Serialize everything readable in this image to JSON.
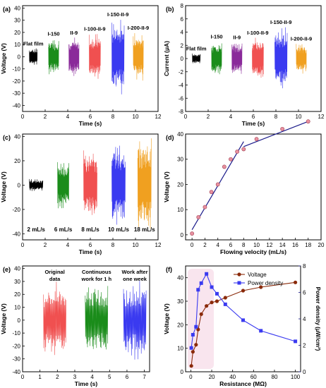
{
  "colors": {
    "black": "#000000",
    "green": "#1a8c1a",
    "purple": "#8a2a9a",
    "red": "#f05050",
    "blue": "#3a3af0",
    "orange": "#f0a020",
    "brown": "#8a2a0a",
    "navy": "#1a1a8a",
    "highlight": "#f4d0e0",
    "pointpink": "#e890a0"
  },
  "chart_data": [
    {
      "panel": "(a)",
      "type": "line",
      "xlabel": "Time (s)",
      "ylabel": "Voltage (V)",
      "xlim": [
        0,
        12
      ],
      "ylim": [
        -45,
        42
      ],
      "xticks": [
        "0",
        "2",
        "4",
        "6",
        "8",
        "10",
        "12"
      ],
      "yticks": [
        "-40",
        "-30",
        "-20",
        "-10",
        "0",
        "10",
        "20",
        "30",
        "40"
      ],
      "series": [
        {
          "name": "Flat film",
          "t0": 0.6,
          "t1": 1.3,
          "amp": 7,
          "color_key": "black"
        },
        {
          "name": "I-150",
          "t0": 2.3,
          "t1": 3.2,
          "amp": 15,
          "color_key": "green"
        },
        {
          "name": "II-9",
          "t0": 4.1,
          "t1": 5.0,
          "amp": 16,
          "color_key": "purple"
        },
        {
          "name": "I-100-II-9",
          "t0": 5.9,
          "t1": 6.9,
          "amp": 19,
          "color_key": "red"
        },
        {
          "name": "I-150-II-9",
          "t0": 7.9,
          "t1": 9.0,
          "amp": 31,
          "color_key": "blue"
        },
        {
          "name": "I-200-II-9",
          "t0": 9.8,
          "t1": 10.7,
          "amp": 20,
          "color_key": "orange"
        }
      ]
    },
    {
      "panel": "(b)",
      "type": "line",
      "xlabel": "Time (s)",
      "ylabel": "Current (μA)",
      "xlim": [
        0,
        12
      ],
      "ylim": [
        -8,
        8
      ],
      "xticks": [
        "0",
        "2",
        "4",
        "6",
        "8",
        "10",
        "12"
      ],
      "yticks": [
        "-8",
        "-6",
        "-4",
        "-2",
        "0",
        "2",
        "4",
        "6",
        "8"
      ],
      "series": [
        {
          "name": "Flat film",
          "t0": 0.6,
          "t1": 1.3,
          "amp": 0.8,
          "color_key": "black"
        },
        {
          "name": "I-150",
          "t0": 2.3,
          "t1": 3.2,
          "amp": 2.6,
          "color_key": "green"
        },
        {
          "name": "II-9",
          "t0": 4.1,
          "t1": 5.0,
          "amp": 2.5,
          "color_key": "purple"
        },
        {
          "name": "I-100-II-9",
          "t0": 5.9,
          "t1": 6.9,
          "amp": 3.2,
          "color_key": "red"
        },
        {
          "name": "I-150-II-9",
          "t0": 7.9,
          "t1": 9.0,
          "amp": 4.8,
          "color_key": "blue"
        },
        {
          "name": "I-200-II-9",
          "t0": 9.8,
          "t1": 10.7,
          "amp": 2.3,
          "color_key": "orange"
        }
      ]
    },
    {
      "panel": "(c)",
      "type": "line",
      "xlabel": "Time (s)",
      "ylabel": "Voltage (V)",
      "xlim": [
        0,
        12
      ],
      "ylim": [
        -45,
        42
      ],
      "xticks": [
        "0",
        "2",
        "4",
        "6",
        "8",
        "10",
        "12"
      ],
      "yticks": [
        "-40",
        "-20",
        "0",
        "20",
        "40"
      ],
      "series": [
        {
          "name": "2 mL/s",
          "t0": 0.6,
          "t1": 1.8,
          "amp": 5,
          "color_key": "black"
        },
        {
          "name": "6 mL/s",
          "t0": 3.1,
          "t1": 4.1,
          "amp": 20,
          "color_key": "green"
        },
        {
          "name": "8 mL/s",
          "t0": 5.4,
          "t1": 6.6,
          "amp": 29,
          "color_key": "red"
        },
        {
          "name": "10 mL/s",
          "t0": 7.9,
          "t1": 9.1,
          "amp": 35,
          "color_key": "blue"
        },
        {
          "name": "18 mL/s",
          "t0": 10.2,
          "t1": 11.4,
          "amp": 40,
          "color_key": "orange"
        }
      ]
    },
    {
      "panel": "(d)",
      "type": "scatter",
      "xlabel": "Flowing velocity (mL/s)",
      "ylabel": "Voltage (V)",
      "xlim": [
        -1,
        20
      ],
      "ylim": [
        -2,
        40
      ],
      "xticks": [
        "0",
        "2",
        "4",
        "6",
        "8",
        "10",
        "12",
        "14",
        "16",
        "18",
        "20"
      ],
      "yticks": [
        "0",
        "10",
        "20",
        "30",
        "40"
      ],
      "x": [
        0,
        1,
        2,
        3,
        4,
        5,
        6,
        7,
        8,
        10,
        14,
        18
      ],
      "y": [
        0.5,
        7,
        11,
        17,
        20,
        27,
        30,
        33,
        34,
        38,
        42,
        45
      ],
      "fit_lines": [
        {
          "x": [
            0,
            8
          ],
          "y": [
            2,
            37
          ]
        },
        {
          "x": [
            8,
            18
          ],
          "y": [
            35,
            45
          ]
        }
      ]
    },
    {
      "panel": "(e)",
      "type": "line",
      "xlabel": "Time (s)",
      "ylabel": "Voltage (V)",
      "xlim": [
        0,
        7.3
      ],
      "ylim": [
        -40,
        42
      ],
      "xticks": [
        "0",
        "1",
        "2",
        "3",
        "4",
        "5",
        "6",
        "7"
      ],
      "yticks": [
        "-40",
        "-30",
        "-20",
        "-10",
        "0",
        "10",
        "20",
        "30",
        "40"
      ],
      "series": [
        {
          "name": "Original data",
          "t0": 1.2,
          "t1": 2.5,
          "amp": 30,
          "color_key": "red"
        },
        {
          "name": "Continuous work for 1 h",
          "t0": 3.6,
          "t1": 4.9,
          "amp": 29,
          "color_key": "green"
        },
        {
          "name": "Work after one week",
          "t0": 5.8,
          "t1": 7.1,
          "amp": 31,
          "color_key": "blue"
        }
      ],
      "labels": [
        {
          "lines": [
            "Original",
            "data"
          ],
          "color_key": "red",
          "x": 1.85
        },
        {
          "lines": [
            "Continuous",
            "work for 1 h"
          ],
          "color_key": "green",
          "x": 4.25
        },
        {
          "lines": [
            "Work after",
            "one week"
          ],
          "color_key": "blue",
          "x": 6.45
        }
      ]
    },
    {
      "panel": "(f)",
      "type": "line",
      "xlabel": "Resistance (MΩ)",
      "ylabel": "Voltage (V)",
      "y2label": "Power density (μW/cm²)",
      "xlim": [
        -5,
        105
      ],
      "ylim": [
        0,
        45
      ],
      "y2lim": [
        0,
        8
      ],
      "xticks": [
        "0",
        "20",
        "40",
        "60",
        "80",
        "100"
      ],
      "yticks": [
        "0",
        "10",
        "20",
        "30",
        "40"
      ],
      "y2ticks": [
        "0",
        "2",
        "4",
        "6",
        "8"
      ],
      "series": [
        {
          "name": "Voltage",
          "axis": "left",
          "color_key": "brown",
          "x": [
            0.5,
            2,
            5,
            7,
            10,
            15,
            20,
            25,
            33,
            50,
            67,
            100
          ],
          "y": [
            2.5,
            8.5,
            11.5,
            18,
            24.5,
            28,
            29.5,
            30,
            31.5,
            34.5,
            36,
            38
          ]
        },
        {
          "name": "Power density",
          "axis": "right",
          "color_key": "navy",
          "x": [
            0.5,
            2,
            5,
            7,
            10,
            15,
            20,
            25,
            33,
            50,
            67,
            100
          ],
          "y": [
            1.8,
            2.8,
            3.4,
            6.2,
            6.7,
            7.4,
            6.4,
            5.9,
            5.1,
            3.9,
            3.1,
            2.3
          ]
        }
      ]
    }
  ]
}
